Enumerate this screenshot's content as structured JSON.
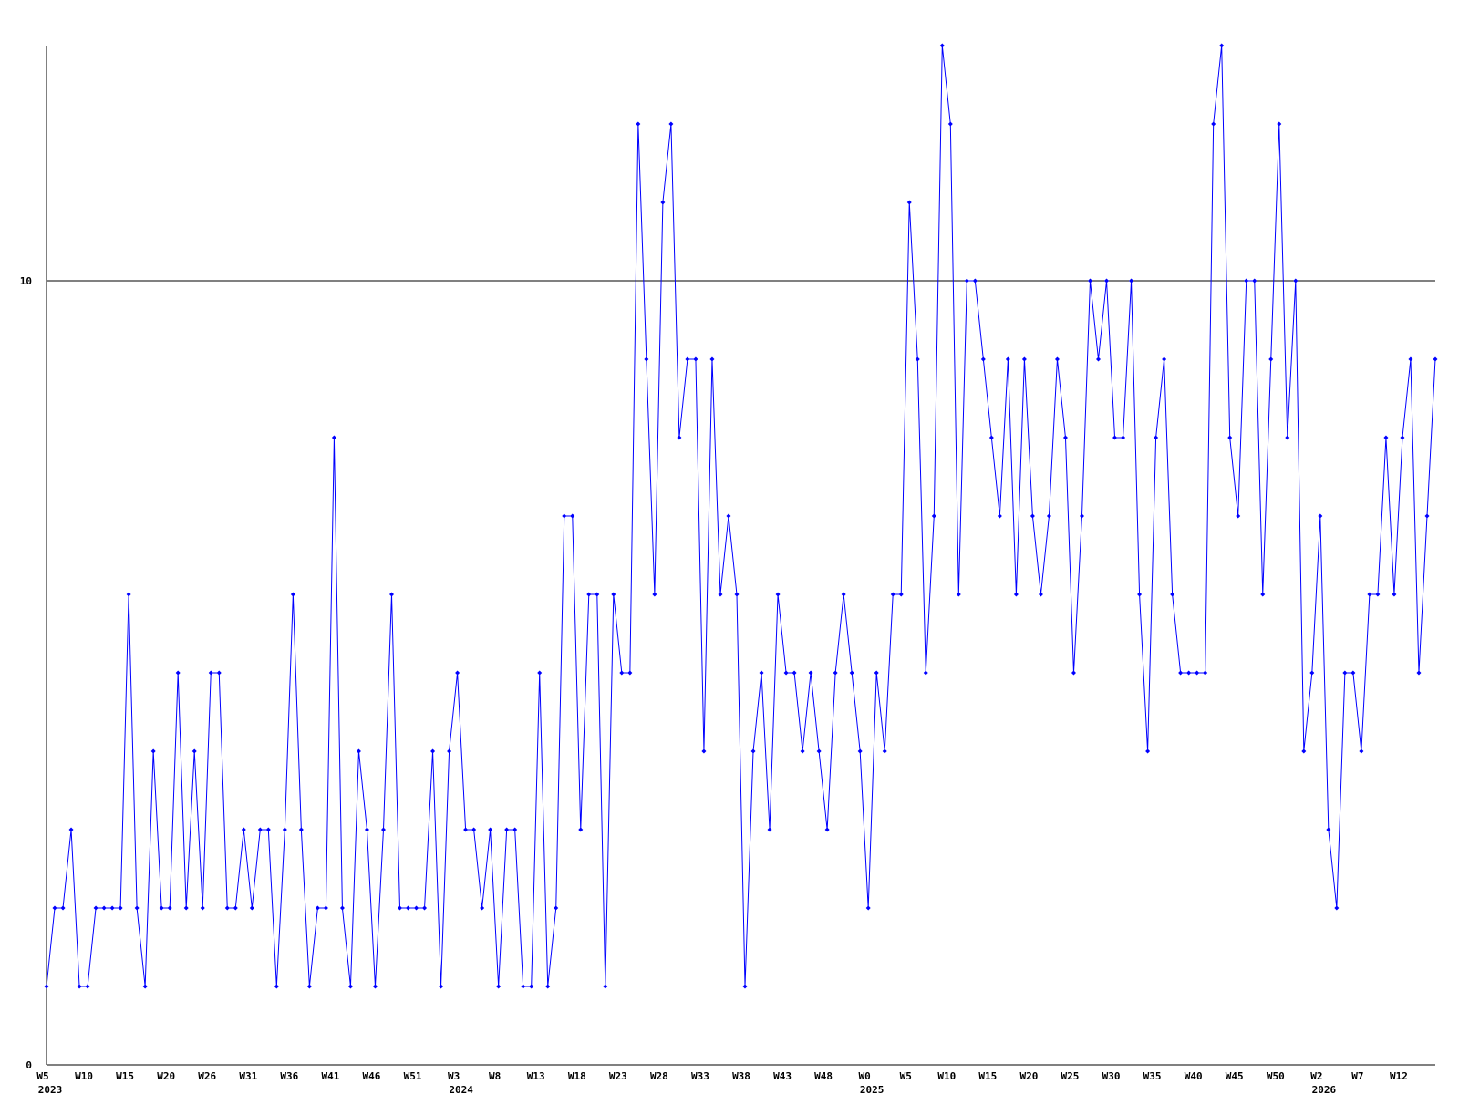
{
  "chart_data": {
    "type": "line",
    "color": "#0000ff",
    "grid": true,
    "categories": [
      "W5",
      null,
      null,
      null,
      null,
      "W10",
      null,
      null,
      null,
      null,
      "W15",
      null,
      null,
      null,
      null,
      "W20",
      null,
      null,
      null,
      null,
      "W26",
      null,
      null,
      null,
      null,
      "W31",
      null,
      null,
      null,
      null,
      "W36",
      null,
      null,
      null,
      null,
      "W41",
      null,
      null,
      null,
      null,
      "W46",
      null,
      null,
      null,
      null,
      "W51",
      null,
      null,
      null,
      null,
      "W3",
      null,
      null,
      null,
      null,
      "W8",
      null,
      null,
      null,
      null,
      "W13",
      null,
      null,
      null,
      null,
      "W18",
      null,
      null,
      null,
      null,
      "W23",
      null,
      null,
      null,
      null,
      "W28",
      null,
      null,
      null,
      null,
      "W33",
      null,
      null,
      null,
      null,
      "W38",
      null,
      null,
      null,
      null,
      "W43",
      null,
      null,
      null,
      null,
      "W48",
      null,
      null,
      null,
      null,
      "W0",
      null,
      null,
      null,
      null,
      "W5",
      null,
      null,
      null,
      null,
      "W10",
      null,
      null,
      null,
      null,
      "W15",
      null,
      null,
      null,
      null,
      "W20",
      null,
      null,
      null,
      null,
      "W25",
      null,
      null,
      null,
      null,
      "W30",
      null,
      null,
      null,
      null,
      "W35",
      null,
      null,
      null,
      null,
      "W40",
      null,
      null,
      null,
      null,
      "W45",
      null,
      null,
      null,
      null,
      "W50",
      null,
      null,
      null,
      null,
      "W2",
      null,
      null,
      null,
      null,
      "W7",
      null,
      null,
      null,
      null,
      "W12",
      null,
      null,
      null,
      null
    ],
    "category_years": [
      "2023",
      null,
      null,
      null,
      null,
      null,
      null,
      null,
      null,
      null,
      null,
      null,
      null,
      null,
      null,
      null,
      null,
      null,
      null,
      null,
      null,
      null,
      null,
      null,
      null,
      null,
      null,
      null,
      null,
      null,
      null,
      null,
      null,
      null,
      null,
      null,
      null,
      null,
      null,
      null,
      null,
      null,
      null,
      null,
      null,
      null,
      null,
      null,
      null,
      null,
      "2024",
      null,
      null,
      null,
      null,
      null,
      null,
      null,
      null,
      null,
      null,
      null,
      null,
      null,
      null,
      null,
      null,
      null,
      null,
      null,
      null,
      null,
      null,
      null,
      null,
      null,
      null,
      null,
      null,
      null,
      null,
      null,
      null,
      null,
      null,
      null,
      null,
      null,
      null,
      null,
      null,
      null,
      null,
      null,
      null,
      null,
      null,
      null,
      null,
      null,
      "2025",
      null,
      null,
      null,
      null,
      null,
      null,
      null,
      null,
      null,
      null,
      null,
      null,
      null,
      null,
      null,
      null,
      null,
      null,
      null,
      null,
      null,
      null,
      null,
      null,
      null,
      null,
      null,
      null,
      null,
      null,
      null,
      null,
      null,
      null,
      null,
      null,
      null,
      null,
      null,
      null,
      null,
      null,
      null,
      null,
      null,
      null,
      null,
      null,
      null,
      null,
      null,
      null,
      null,
      null,
      "2026",
      null,
      null,
      null,
      null,
      null,
      null,
      null,
      null,
      null,
      null,
      null,
      null,
      null,
      null
    ],
    "values": [
      1,
      2,
      2,
      3,
      1,
      1,
      2,
      2,
      2,
      2,
      6,
      2,
      1,
      4,
      2,
      2,
      5,
      2,
      4,
      2,
      5,
      5,
      2,
      2,
      3,
      2,
      3,
      3,
      1,
      3,
      6,
      3,
      1,
      2,
      2,
      8,
      2,
      1,
      4,
      3,
      1,
      3,
      6,
      2,
      2,
      2,
      2,
      4,
      1,
      4,
      5,
      3,
      3,
      2,
      3,
      1,
      3,
      3,
      1,
      1,
      5,
      1,
      2,
      7,
      7,
      3,
      6,
      6,
      1,
      6,
      5,
      5,
      12,
      9,
      6,
      11,
      12,
      8,
      9,
      9,
      4,
      9,
      6,
      7,
      6,
      1,
      4,
      5,
      3,
      6,
      5,
      5,
      4,
      5,
      4,
      3,
      5,
      6,
      5,
      4,
      2,
      5,
      4,
      6,
      6,
      11,
      9,
      5,
      7,
      13,
      12,
      6,
      10,
      10,
      9,
      8,
      7,
      9,
      6,
      9,
      7,
      6,
      7,
      9,
      8,
      5,
      7,
      10,
      9,
      10,
      8,
      8,
      10,
      6,
      4,
      8,
      9,
      6,
      5,
      5,
      5,
      5,
      12,
      13,
      8,
      7,
      10,
      10,
      6,
      9,
      12,
      8,
      10,
      4,
      5,
      7,
      3,
      2,
      5,
      5,
      4,
      6,
      6,
      8,
      6,
      8,
      9,
      5,
      7,
      9
    ],
    "ylim": [
      0,
      13
    ],
    "yticks": [
      0,
      10
    ]
  }
}
